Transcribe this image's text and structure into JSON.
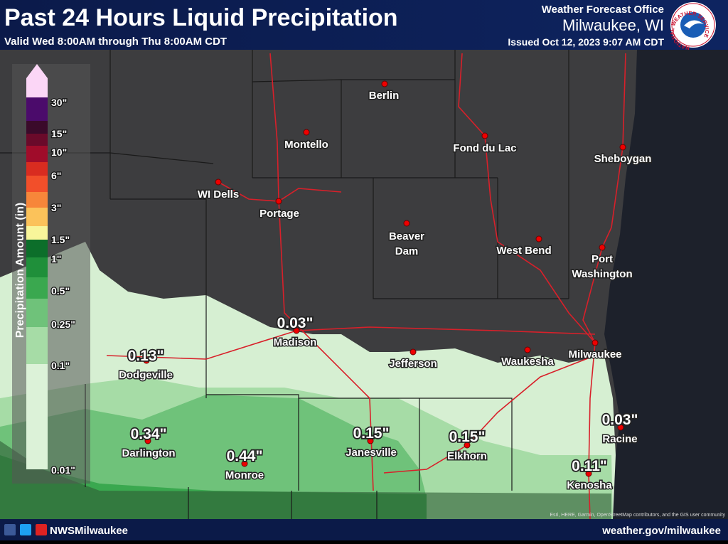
{
  "header": {
    "title": "Past 24 Hours Liquid Precipitation",
    "subtitle": "Valid Wed 8:00AM through Thu 8:00AM CDT",
    "office": "Weather Forecast Office",
    "location": "Milwaukee, WI",
    "issued": "Issued Oct 12, 2023 9:07 AM CDT",
    "logo_text": "NATIONAL WEATHER SERVICE"
  },
  "legend": {
    "title": "Precipitation Amount (in)",
    "labels": [
      "30\"",
      "15\"",
      "10\"",
      "6\"",
      "3\"",
      "1.5\"",
      "1\"",
      "0.5\"",
      "0.25\"",
      "0.1\"",
      "0.01\""
    ]
  },
  "cities": [
    {
      "lines": [
        "Berlin"
      ]
    },
    {
      "lines": [
        "Montello"
      ]
    },
    {
      "lines": [
        "Fond du Lac"
      ]
    },
    {
      "lines": [
        "Sheboygan"
      ]
    },
    {
      "lines": [
        "WI Dells"
      ]
    },
    {
      "lines": [
        "Portage"
      ]
    },
    {
      "lines": [
        "Beaver",
        "Dam"
      ]
    },
    {
      "lines": [
        "West Bend"
      ]
    },
    {
      "lines": [
        "Port",
        "Washington"
      ]
    },
    {
      "lines": [
        "Madison"
      ],
      "amount": "0.03\""
    },
    {
      "lines": [
        "Jefferson"
      ]
    },
    {
      "lines": [
        "Waukesha"
      ]
    },
    {
      "lines": [
        "Milwaukee"
      ]
    },
    {
      "lines": [
        "Dodgeville"
      ],
      "amount": "0.13\""
    },
    {
      "lines": [
        "Darlington"
      ],
      "amount": "0.34\""
    },
    {
      "lines": [
        "Monroe"
      ],
      "amount": "0.44\""
    },
    {
      "lines": [
        "Janesville"
      ],
      "amount": "0.15\""
    },
    {
      "lines": [
        "Elkhorn"
      ],
      "amount": "0.15\""
    },
    {
      "lines": [
        "Racine"
      ],
      "amount": "0.03\""
    },
    {
      "lines": [
        "Kenosha"
      ],
      "amount": "0.11\""
    }
  ],
  "attribution": "Esri, HERE, Garmin, OpenStreetMap contributors, and the GIS user community",
  "footer": {
    "social": "NWSMilwaukee",
    "url": "weather.gov/milwaukee"
  }
}
